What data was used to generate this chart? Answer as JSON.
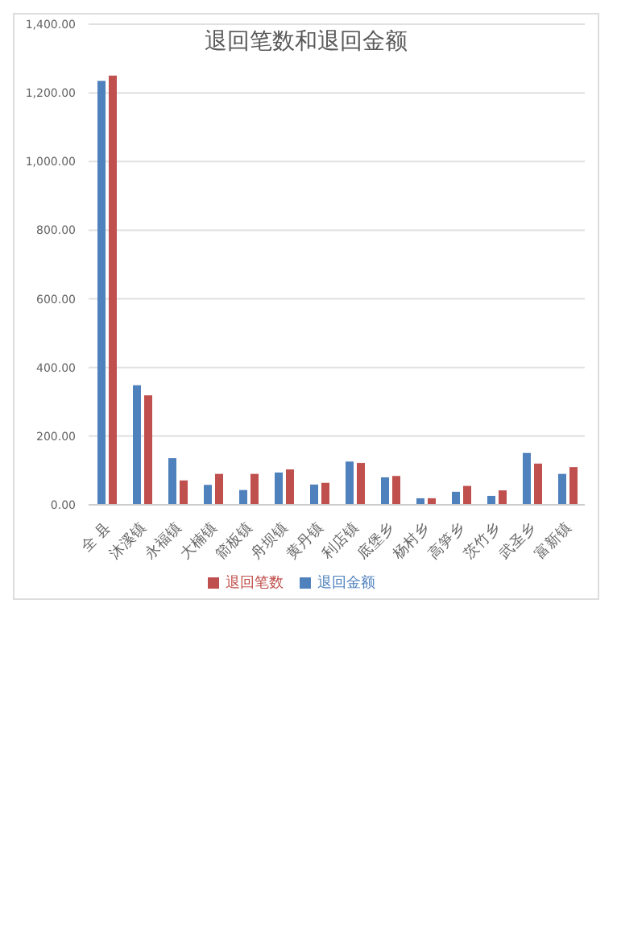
{
  "chart_data": {
    "type": "bar",
    "title": "退回笔数和退回金额",
    "categories": [
      "全  县",
      "沐溪镇",
      "永福镇",
      "大楠镇",
      "箭板镇",
      "舟坝镇",
      "黄丹镇",
      "利店镇",
      "底堡乡",
      "杨村乡",
      "高笋乡",
      "茨竹乡",
      "武圣乡",
      "富新镇"
    ],
    "series": [
      {
        "name": "退回金额",
        "color": "#4f81bd",
        "values": [
          1235,
          348,
          136,
          58,
          43,
          94,
          59,
          126,
          80,
          19,
          38,
          26,
          151,
          90
        ]
      },
      {
        "name": "退回笔数",
        "color": "#c0504d",
        "values": [
          1250,
          319,
          71,
          90,
          90,
          103,
          64,
          122,
          84,
          19,
          55,
          42,
          120,
          110
        ]
      }
    ],
    "ylim": [
      0,
      1400
    ],
    "yticks": [
      {
        "value": 0,
        "label": "0.00"
      },
      {
        "value": 200,
        "label": "200.00"
      },
      {
        "value": 400,
        "label": "400.00"
      },
      {
        "value": 600,
        "label": "600.00"
      },
      {
        "value": 800,
        "label": "800.00"
      },
      {
        "value": 1000,
        "label": "1,000.00"
      },
      {
        "value": 1200,
        "label": "1,200.00"
      },
      {
        "value": 1400,
        "label": "1,400.00"
      }
    ],
    "grid": "y",
    "legend": "bottom"
  }
}
